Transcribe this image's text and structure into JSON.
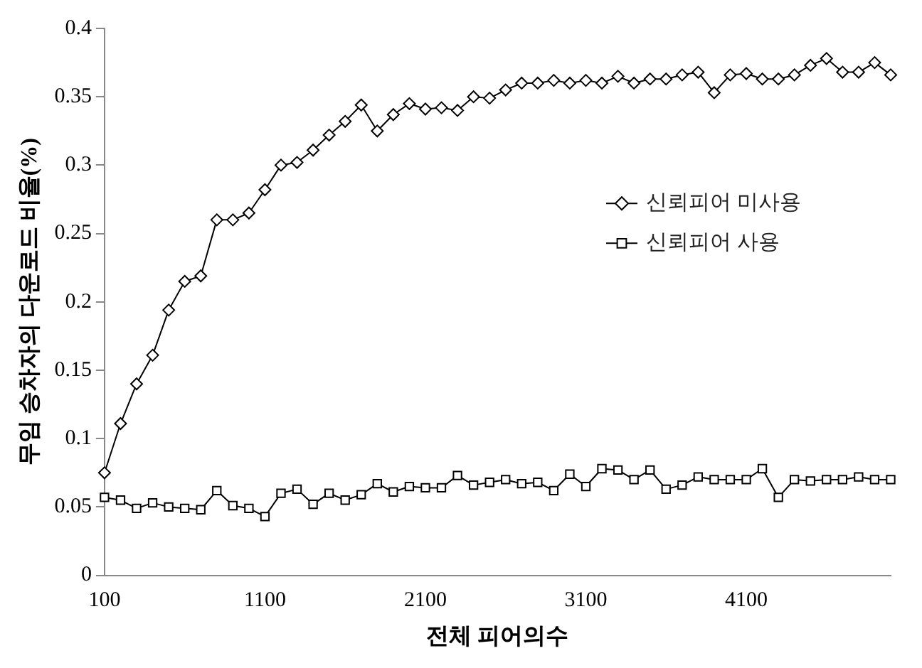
{
  "chart_data": {
    "type": "line",
    "xlabel": "전체 피어의수",
    "ylabel": "무임 승차자의 다운로드 비율(%)",
    "categories": [
      "100",
      null,
      null,
      null,
      null,
      null,
      null,
      null,
      null,
      null,
      "1100",
      null,
      null,
      null,
      null,
      null,
      null,
      null,
      null,
      null,
      "2100",
      null,
      null,
      null,
      null,
      null,
      null,
      null,
      null,
      null,
      "3100",
      null,
      null,
      null,
      null,
      null,
      null,
      null,
      null,
      null,
      "4100",
      null,
      null,
      null,
      null,
      null,
      null,
      null,
      null,
      null
    ],
    "series": [
      {
        "name": "신뢰피어 미사용",
        "color": "#000000",
        "marker": "diamond",
        "values": [
          0.075,
          0.111,
          0.14,
          0.161,
          0.194,
          0.215,
          0.219,
          0.26,
          0.26,
          0.265,
          0.282,
          0.3,
          0.302,
          0.311,
          0.322,
          0.332,
          0.344,
          0.325,
          0.337,
          0.345,
          0.341,
          0.342,
          0.34,
          0.35,
          0.349,
          0.355,
          0.36,
          0.36,
          0.362,
          0.36,
          0.362,
          0.36,
          0.365,
          0.36,
          0.363,
          0.363,
          0.366,
          0.368,
          0.353,
          0.366,
          0.367,
          0.363,
          0.363,
          0.366,
          0.373,
          0.378,
          0.368,
          0.368,
          0.375,
          0.366
        ]
      },
      {
        "name": "신뢰피어 사용",
        "color": "#000000",
        "marker": "square",
        "values": [
          0.057,
          0.055,
          0.049,
          0.053,
          0.05,
          0.049,
          0.048,
          0.062,
          0.051,
          0.049,
          0.043,
          0.06,
          0.063,
          0.052,
          0.06,
          0.055,
          0.059,
          0.067,
          0.061,
          0.065,
          0.064,
          0.064,
          0.073,
          0.066,
          0.068,
          0.07,
          0.067,
          0.068,
          0.062,
          0.074,
          0.065,
          0.078,
          0.077,
          0.07,
          0.077,
          0.063,
          0.066,
          0.072,
          0.07,
          0.07,
          0.07,
          0.078,
          0.057,
          0.07,
          0.069,
          0.07,
          0.07,
          0.072,
          0.07,
          0.07
        ]
      }
    ],
    "ylim": [
      0,
      0.4
    ],
    "yticks": [
      0,
      0.05,
      0.1,
      0.15,
      0.2,
      0.25,
      0.3,
      0.35,
      0.4
    ],
    "grid": false,
    "legend": "right",
    "line_style": "solid"
  }
}
